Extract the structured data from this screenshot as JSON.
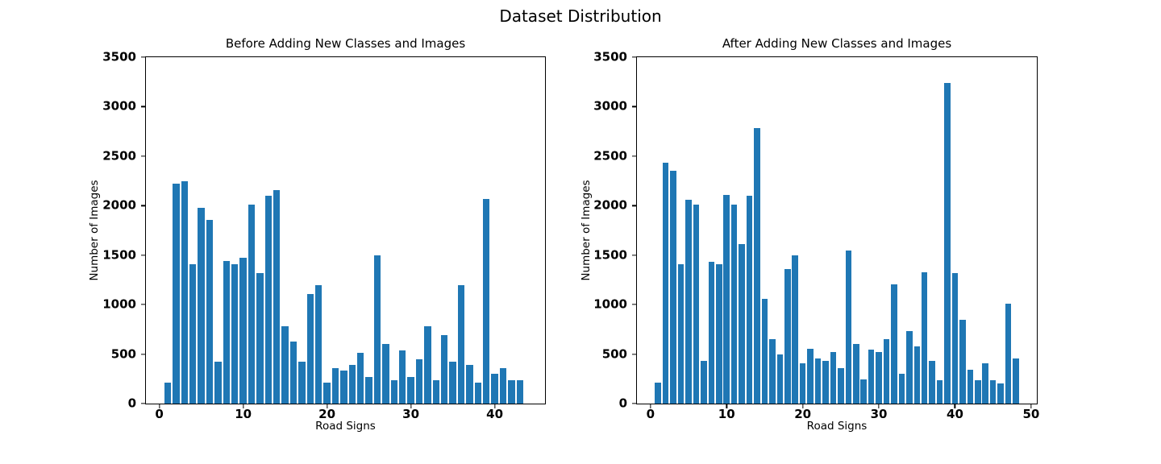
{
  "figure": {
    "title": "Dataset Distribution",
    "background": "#ffffff",
    "text_color": "#000000",
    "spine_color": "#000000"
  },
  "chart_data": [
    {
      "type": "bar",
      "title": "Before Adding New Classes and Images",
      "xlabel": "Road Signs",
      "ylabel": "Number of Images",
      "bar_color": "#1f77b4",
      "bar_width": 0.8,
      "x_start": 1,
      "values": [
        210,
        2220,
        2250,
        1410,
        1980,
        1860,
        420,
        1440,
        1410,
        1470,
        2010,
        1320,
        2100,
        2160,
        780,
        630,
        420,
        1110,
        1200,
        210,
        360,
        330,
        390,
        510,
        270,
        1500,
        600,
        240,
        540,
        270,
        450,
        780,
        240,
        690,
        420,
        1200,
        390,
        210,
        2070,
        300,
        360,
        240,
        240
      ],
      "xlim": [
        -1.6,
        46.0
      ],
      "ylim": [
        0,
        3500
      ],
      "xticks": [
        0,
        10,
        20,
        30,
        40
      ],
      "yticks": [
        0,
        500,
        1000,
        1500,
        2000,
        2500,
        3000,
        3500
      ],
      "grid": false,
      "legend": null
    },
    {
      "type": "bar",
      "title": "After Adding New Classes and Images",
      "xlabel": "Road Signs",
      "ylabel": "Number of Images",
      "bar_color": "#1f77b4",
      "bar_width": 0.8,
      "x_start": 1,
      "values": [
        210,
        2430,
        2350,
        1410,
        2060,
        2010,
        430,
        1430,
        1410,
        2110,
        2010,
        1615,
        2100,
        2780,
        1055,
        650,
        500,
        1360,
        1495,
        410,
        555,
        460,
        430,
        525,
        355,
        1550,
        600,
        245,
        545,
        525,
        655,
        1205,
        300,
        735,
        575,
        1325,
        430,
        240,
        3240,
        1320,
        850,
        340,
        240,
        410,
        235,
        205,
        1010,
        455
      ],
      "xlim": [
        -1.78,
        50.75
      ],
      "ylim": [
        0,
        3500
      ],
      "xticks": [
        0,
        10,
        20,
        30,
        40,
        50
      ],
      "yticks": [
        0,
        500,
        1000,
        1500,
        2000,
        2500,
        3000,
        3500
      ],
      "grid": false,
      "legend": null
    }
  ]
}
